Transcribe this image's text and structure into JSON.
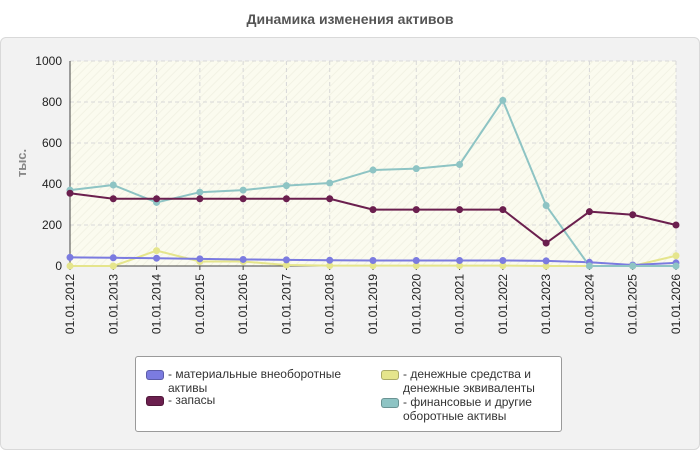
{
  "chart_data": {
    "type": "line",
    "title": "Динамика изменения активов",
    "ylabel": "тыс.",
    "xlabel": "",
    "ylim": [
      0,
      1000
    ],
    "yticks": [
      "0",
      "200",
      "400",
      "600",
      "800",
      "1000"
    ],
    "grid": true,
    "legend_position": "bottom",
    "x": [
      "01.01.2012",
      "01.01.2013",
      "01.01.2014",
      "01.01.2015",
      "01.01.2016",
      "01.01.2017",
      "01.01.2018",
      "01.01.2019",
      "01.01.2020",
      "01.01.2021",
      "01.01.2022",
      "01.01.2023",
      "01.01.2024",
      "01.01.2025",
      "01.01.2026"
    ],
    "series": [
      {
        "name": "- материальные внеоборотные активы",
        "color": "#7b7be0",
        "values": [
          42,
          40,
          38,
          35,
          32,
          30,
          28,
          27,
          27,
          27,
          27,
          25,
          18,
          5,
          15
        ]
      },
      {
        "name": "- запасы",
        "color": "#6b1f4e",
        "values": [
          355,
          328,
          328,
          328,
          328,
          328,
          328,
          275,
          275,
          275,
          275,
          112,
          265,
          250,
          200
        ]
      },
      {
        "name": "- денежные средства и денежные эквиваленты",
        "color": "#e5e58c",
        "values": [
          0,
          0,
          75,
          22,
          22,
          5,
          2,
          2,
          2,
          2,
          2,
          0,
          0,
          0,
          50
        ]
      },
      {
        "name": "- финансовые и другие оборотные активы",
        "color": "#8ec4c4",
        "values": [
          370,
          395,
          310,
          360,
          370,
          392,
          405,
          468,
          475,
          495,
          808,
          295,
          0,
          0,
          0
        ]
      }
    ]
  },
  "legend": {
    "items": [
      "- материальные внеоборотные активы",
      "- запасы",
      "- денежные средства и денежные эквиваленты",
      "- финансовые и другие оборотные активы"
    ]
  }
}
